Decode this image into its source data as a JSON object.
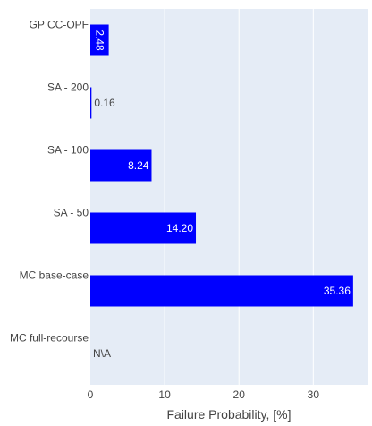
{
  "chart_data": {
    "type": "bar",
    "orientation": "horizontal",
    "categories": [
      "GP CC-OPF",
      "SA - 200",
      "SA - 100",
      "SA - 50",
      "MC base-case",
      "MC full-recourse"
    ],
    "values": [
      2.48,
      0.16,
      8.24,
      14.2,
      35.36,
      null
    ],
    "bar_labels": [
      "2.48",
      "0.16",
      "8.24",
      "14.20",
      "35.36",
      "N\\A"
    ],
    "xlabel": "Failure Probability, [%]",
    "ylabel": "",
    "xlim": [
      0,
      37.3
    ],
    "xticks": [
      0,
      10,
      20,
      30
    ],
    "xtick_labels": [
      "0",
      "10",
      "20",
      "30"
    ],
    "grid": true,
    "colors": {
      "bar": "#0000ff",
      "plot_bg": "#e5ecf6",
      "grid": "#ffffff",
      "text": "#444444"
    }
  }
}
